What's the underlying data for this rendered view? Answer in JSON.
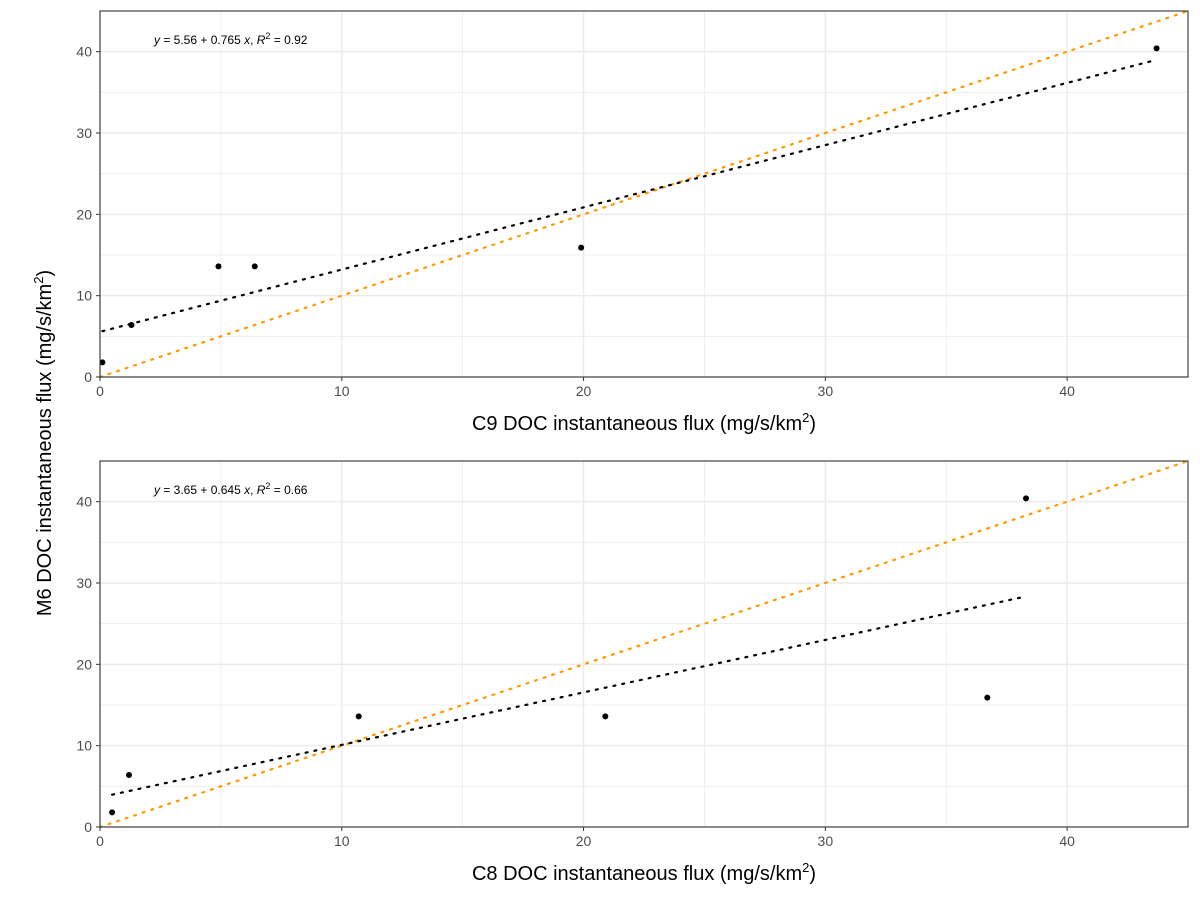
{
  "ylabel": "M6 DOC instantaneous flux (mg/s/km",
  "unit_superscript": "2",
  "unit_close": ")",
  "colors": {
    "points": "#000000",
    "fit_line": "#000000",
    "one_to_one": "#FF9900",
    "grid_major": "#EBEBEB",
    "panel_border": "#333333"
  },
  "chart_data": [
    {
      "type": "scatter",
      "xlabel": "C9 DOC instantaneous flux (mg/s/km",
      "xlim": [
        0,
        45
      ],
      "ylim": [
        0,
        45
      ],
      "xticks": [
        "0",
        "10",
        "20",
        "30",
        "40"
      ],
      "yticks": [
        "0",
        "10",
        "20",
        "30",
        "40"
      ],
      "equation": {
        "lead": "y",
        "mid": " = 5.56 + 0.765 ",
        "x": "x",
        "sep": ", ",
        "r": "R",
        "r_sup": "2",
        "r_val": " = 0.92"
      },
      "points": [
        {
          "x": 0.1,
          "y": 1.8
        },
        {
          "x": 1.3,
          "y": 6.4
        },
        {
          "x": 4.9,
          "y": 13.6
        },
        {
          "x": 6.4,
          "y": 13.6
        },
        {
          "x": 19.9,
          "y": 15.9
        },
        {
          "x": 43.7,
          "y": 40.4
        }
      ],
      "fit": {
        "intercept": 5.56,
        "slope": 0.765,
        "x_range": [
          0.1,
          43.7
        ]
      },
      "reference_line": {
        "intercept": 0,
        "slope": 1
      }
    },
    {
      "type": "scatter",
      "xlabel": "C8 DOC instantaneous flux (mg/s/km",
      "xlim": [
        0,
        45
      ],
      "ylim": [
        0,
        45
      ],
      "xticks": [
        "0",
        "10",
        "20",
        "30",
        "40"
      ],
      "yticks": [
        "0",
        "10",
        "20",
        "30",
        "40"
      ],
      "equation": {
        "lead": "y",
        "mid": " = 3.65 + 0.645 ",
        "x": "x",
        "sep": ", ",
        "r": "R",
        "r_sup": "2",
        "r_val": " = 0.66"
      },
      "points": [
        {
          "x": 0.5,
          "y": 1.8
        },
        {
          "x": 1.2,
          "y": 6.4
        },
        {
          "x": 10.7,
          "y": 13.6
        },
        {
          "x": 20.9,
          "y": 13.6
        },
        {
          "x": 36.7,
          "y": 15.9
        },
        {
          "x": 38.3,
          "y": 40.4
        }
      ],
      "fit": {
        "intercept": 3.65,
        "slope": 0.645,
        "x_range": [
          0.5,
          38.3
        ]
      },
      "reference_line": {
        "intercept": 0,
        "slope": 1
      }
    }
  ]
}
